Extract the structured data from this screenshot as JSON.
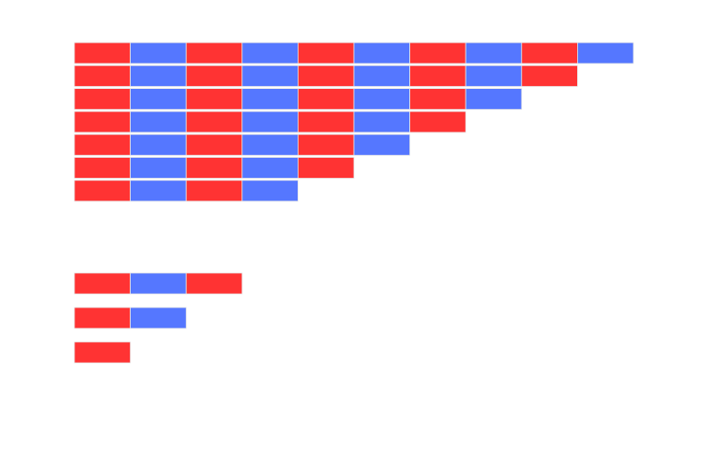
{
  "staircase": {
    "rows": [
      10,
      9,
      8,
      7,
      6,
      5,
      4
    ]
  },
  "stack": {
    "rows": [
      3,
      2,
      1
    ]
  }
}
